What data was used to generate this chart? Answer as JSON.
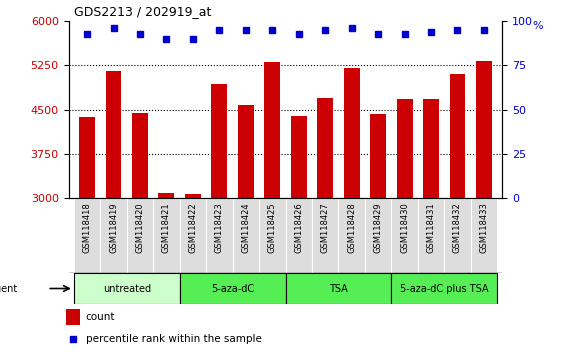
{
  "title": "GDS2213 / 202919_at",
  "samples": [
    "GSM118418",
    "GSM118419",
    "GSM118420",
    "GSM118421",
    "GSM118422",
    "GSM118423",
    "GSM118424",
    "GSM118425",
    "GSM118426",
    "GSM118427",
    "GSM118428",
    "GSM118429",
    "GSM118430",
    "GSM118431",
    "GSM118432",
    "GSM118433"
  ],
  "counts": [
    4380,
    5150,
    4450,
    3090,
    3070,
    4930,
    4580,
    5310,
    4400,
    4700,
    5200,
    4430,
    4680,
    4680,
    5100,
    5320
  ],
  "percentile_raw": [
    93,
    96,
    93,
    90,
    90,
    95,
    95,
    95,
    93,
    95,
    96,
    93,
    93,
    94,
    95,
    95
  ],
  "bar_color": "#CC0000",
  "dot_color": "#0000CC",
  "ylim_left": [
    3000,
    6000
  ],
  "ylim_right": [
    0,
    100
  ],
  "yticks_left": [
    3000,
    3750,
    4500,
    5250,
    6000
  ],
  "yticks_right": [
    0,
    25,
    50,
    75,
    100
  ],
  "gridline_values": [
    3750,
    4500,
    5250
  ],
  "groups": [
    {
      "label": "untreated",
      "start": 0,
      "end": 3,
      "color": "#CCFFCC"
    },
    {
      "label": "5-aza-dC",
      "start": 4,
      "end": 7,
      "color": "#55EE55"
    },
    {
      "label": "TSA",
      "start": 8,
      "end": 11,
      "color": "#55EE55"
    },
    {
      "label": "5-aza-dC plus TSA",
      "start": 12,
      "end": 15,
      "color": "#55EE55"
    }
  ],
  "agent_label": "agent",
  "legend_count_label": "count",
  "legend_pct_label": "percentile rank within the sample",
  "tick_label_color_left": "#CC0000",
  "tick_label_color_right": "#0000CC",
  "plot_bg_color": "#FFFFFF",
  "sample_box_color": "#DDDDDD",
  "sep_line_color": "#000000"
}
